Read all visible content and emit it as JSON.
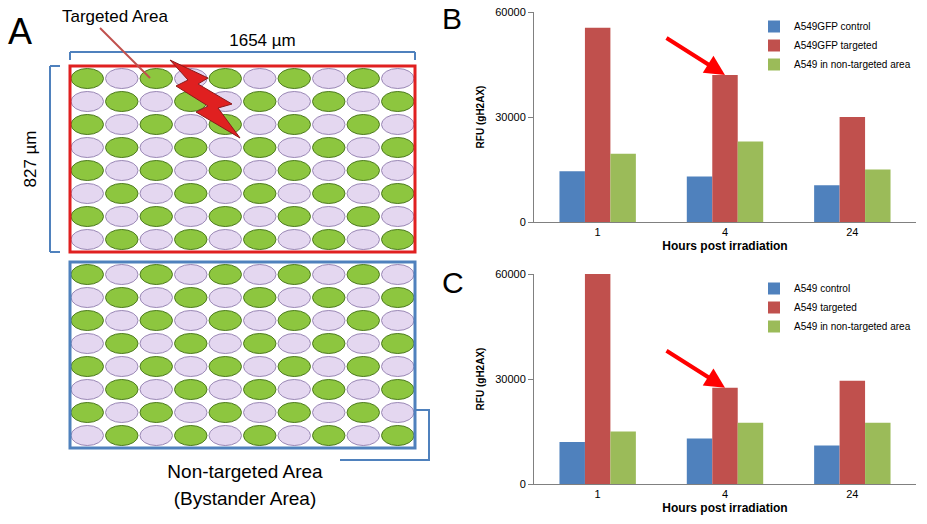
{
  "panels": {
    "A": "A",
    "B": "B",
    "C": "C"
  },
  "diagram": {
    "targeted_label": "Targeted Area",
    "width_label": "1654 µm",
    "height_label": "827 µm",
    "non_targeted_label": [
      "Non-targeted Area",
      "(Bystander Area)"
    ]
  },
  "chart_data": [
    {
      "type": "bar",
      "categories": [
        "1",
        "4",
        "24"
      ],
      "x_label": "Hours post irradiation",
      "y_label": "RFU (gH2AX)",
      "ylim": [
        0,
        60000
      ],
      "yticks": [
        0,
        30000,
        60000
      ],
      "grid": false,
      "legend": "top right",
      "series": [
        {
          "name": "A549GFP control",
          "color": "#4f81bd",
          "values": [
            14500,
            13000,
            10500
          ]
        },
        {
          "name": "A549GFP targeted",
          "color": "#c0504d",
          "values": [
            55500,
            42000,
            30000
          ]
        },
        {
          "name": "A549 in non-targeted area",
          "color": "#9bbb59",
          "values": [
            19500,
            23000,
            15000
          ]
        }
      ]
    },
    {
      "type": "bar",
      "categories": [
        "1",
        "4",
        "24"
      ],
      "x_label": "Hours post irradiation",
      "y_label": "RFU (gH2AX)",
      "ylim": [
        0,
        60000
      ],
      "yticks": [
        0,
        30000,
        60000
      ],
      "grid": false,
      "legend": "top right",
      "series": [
        {
          "name": "A549 control",
          "color": "#4f81bd",
          "values": [
            12000,
            13000,
            11000
          ]
        },
        {
          "name": "A549 targeted",
          "color": "#c0504d",
          "values": [
            60000,
            27500,
            29500
          ]
        },
        {
          "name": "A549 in non-targeted area",
          "color": "#9bbb59",
          "values": [
            15000,
            17500,
            17500
          ]
        }
      ]
    }
  ]
}
